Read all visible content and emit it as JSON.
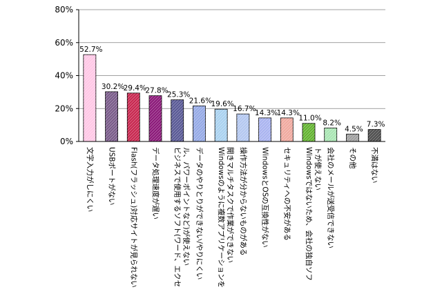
{
  "chart_data": {
    "type": "bar",
    "title": "",
    "xlabel": "",
    "ylabel": "",
    "ylim": [
      0,
      80
    ],
    "yticks": [
      "0%",
      "20%",
      "40%",
      "60%",
      "80%"
    ],
    "grid": true,
    "legend": "none",
    "categories": [
      [
        "文字入力がしにくい"
      ],
      [
        "USBポートがない"
      ],
      [
        "Flash(フラッシュ)対応サイトが見られない"
      ],
      [
        "データ処理速度が遅い"
      ],
      [
        "ビジネスで使用するソフト(ワード、エクセ",
        "ル、パワーポイントなど)が使えない"
      ],
      [
        "データのやりとりができない/やりにくい"
      ],
      [
        "Windowsのように複数アプリケーションを",
        "開きマルチタスクで作業ができない"
      ],
      [
        "操作方法が分からないものがある"
      ],
      [
        "WindowsとOSの互換性がない"
      ],
      [
        "セキュリティへの不安がある"
      ],
      [
        "Windowsではないため、会社の独自ソフ",
        "トが使えない"
      ],
      [
        "会社のメールが送受信できない"
      ],
      [
        "その他"
      ],
      [
        "不満はない"
      ]
    ],
    "values": [
      52.7,
      30.2,
      29.4,
      27.8,
      25.3,
      21.6,
      19.6,
      16.7,
      14.3,
      14.3,
      11.0,
      8.2,
      4.5,
      7.3
    ],
    "value_labels": [
      "52.7%",
      "30.2%",
      "29.4%",
      "27.8%",
      "25.3%",
      "21.6%",
      "19.6%",
      "16.7%",
      "14.3%",
      "14.3%",
      "11.0%",
      "8.2%",
      "4.5%",
      "7.3%"
    ],
    "bar_colors": [
      "#ffc8e6",
      "#7a5c8a",
      "#c82850",
      "#8c1a7a",
      "#5a5a96",
      "#96aae6",
      "#aad2f0",
      "#b4c8f0",
      "#aab4f0",
      "#f0aaa0",
      "#64b432",
      "#aae6b4",
      "#a0a0a0",
      "#505050"
    ]
  }
}
